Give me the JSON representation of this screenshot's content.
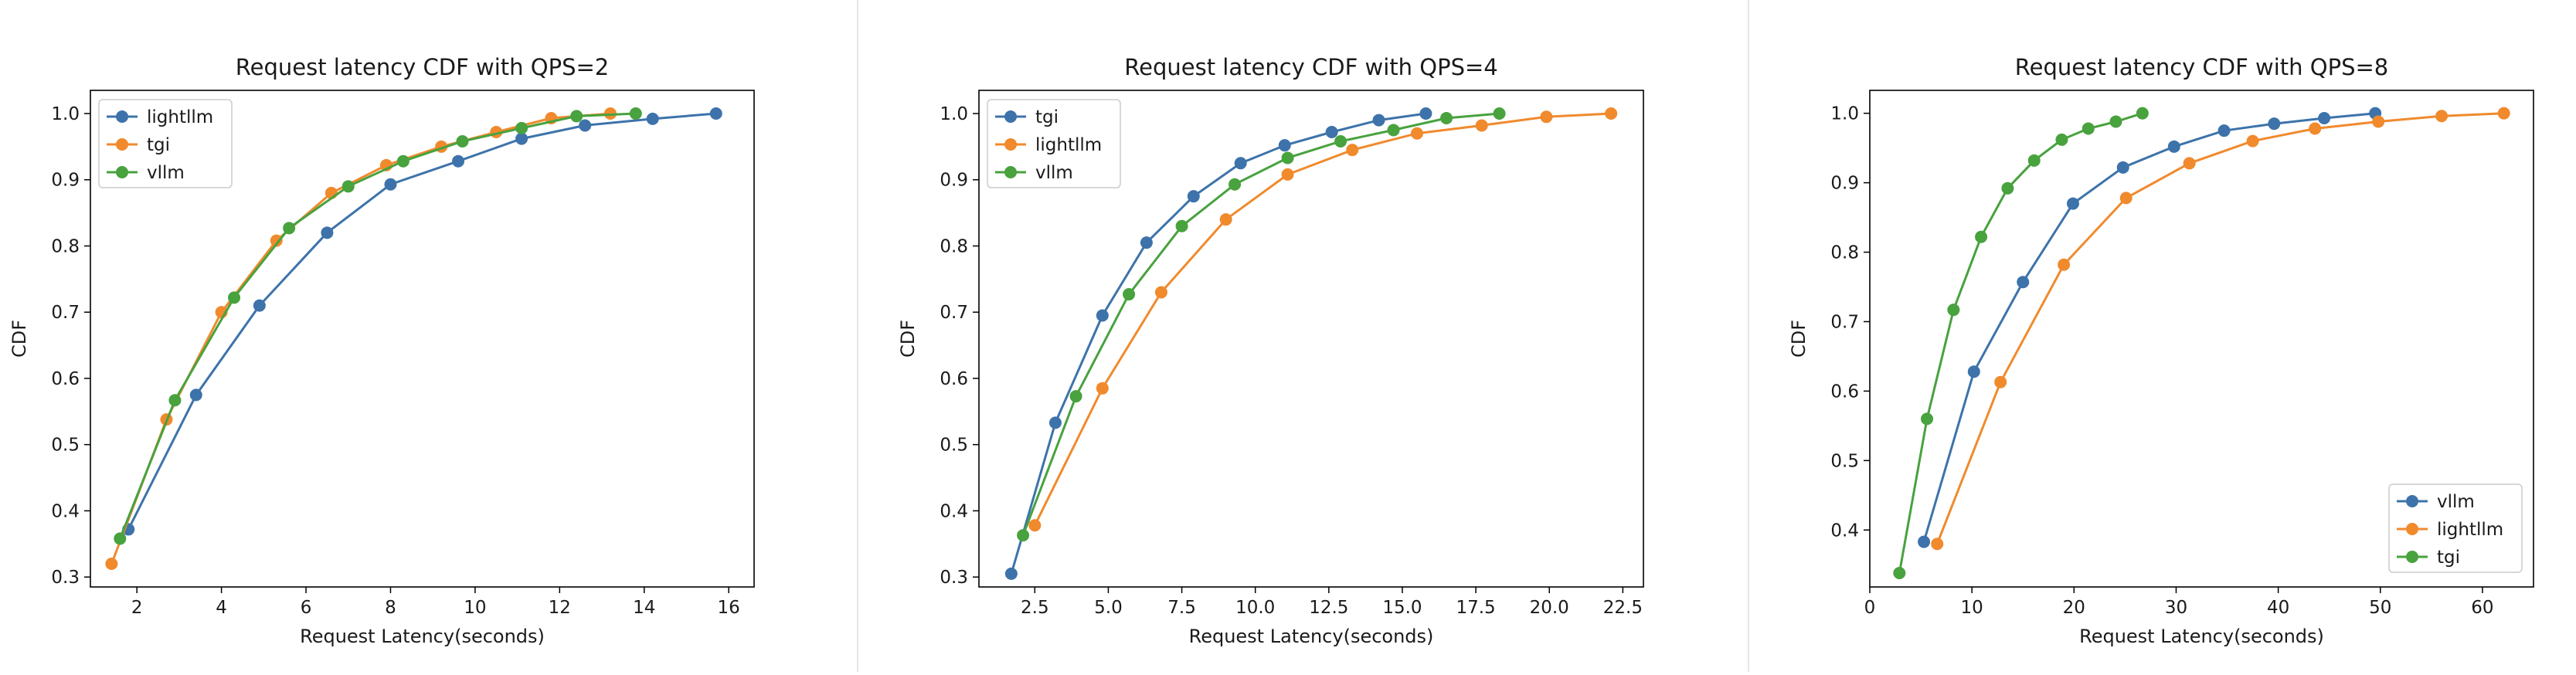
{
  "chart_data": [
    {
      "type": "line",
      "title": "Request latency CDF with QPS=2",
      "xlabel": "Request Latency(seconds)",
      "ylabel": "CDF",
      "xlim": [
        0.9,
        16.6
      ],
      "ylim": [
        0.285,
        1.035
      ],
      "xticks": [
        2,
        4,
        6,
        8,
        10,
        12,
        14,
        16
      ],
      "yticks": [
        0.3,
        0.4,
        0.5,
        0.6,
        0.7,
        0.8,
        0.9,
        1.0
      ],
      "grid": false,
      "legend": "top-left",
      "series": [
        {
          "name": "lightllm",
          "color": "#3d73aa",
          "x": [
            1.8,
            3.4,
            4.9,
            6.5,
            8.0,
            9.6,
            11.1,
            12.6,
            14.2,
            15.7
          ],
          "y": [
            0.372,
            0.575,
            0.71,
            0.82,
            0.893,
            0.928,
            0.962,
            0.982,
            0.992,
            1.0
          ]
        },
        {
          "name": "tgi",
          "color": "#f08a2d",
          "x": [
            1.4,
            2.7,
            4.0,
            5.3,
            6.6,
            7.9,
            9.2,
            10.5,
            11.8,
            13.2
          ],
          "y": [
            0.32,
            0.538,
            0.7,
            0.808,
            0.88,
            0.922,
            0.95,
            0.972,
            0.993,
            1.0
          ]
        },
        {
          "name": "vllm",
          "color": "#48a23e",
          "x": [
            1.6,
            2.9,
            4.3,
            5.6,
            7.0,
            8.3,
            9.7,
            11.1,
            12.4,
            13.8
          ],
          "y": [
            0.358,
            0.567,
            0.722,
            0.827,
            0.89,
            0.928,
            0.958,
            0.978,
            0.996,
            1.0
          ]
        }
      ]
    },
    {
      "type": "line",
      "title": "Request latency CDF with QPS=4",
      "xlabel": "Request Latency(seconds)",
      "ylabel": "CDF",
      "xlim": [
        0.6,
        23.2
      ],
      "ylim": [
        0.285,
        1.035
      ],
      "xticks": [
        2.5,
        5.0,
        7.5,
        10.0,
        12.5,
        15.0,
        17.5,
        20.0,
        22.5
      ],
      "yticks": [
        0.3,
        0.4,
        0.5,
        0.6,
        0.7,
        0.8,
        0.9,
        1.0
      ],
      "grid": false,
      "legend": "top-left",
      "series": [
        {
          "name": "tgi",
          "color": "#3d73aa",
          "x": [
            1.7,
            3.2,
            4.8,
            6.3,
            7.9,
            9.5,
            11.0,
            12.6,
            14.2,
            15.8
          ],
          "y": [
            0.305,
            0.533,
            0.695,
            0.805,
            0.875,
            0.925,
            0.952,
            0.972,
            0.99,
            1.0
          ]
        },
        {
          "name": "lightllm",
          "color": "#f08a2d",
          "x": [
            2.5,
            4.8,
            6.8,
            9.0,
            11.1,
            13.3,
            15.5,
            17.7,
            19.9,
            22.1
          ],
          "y": [
            0.378,
            0.585,
            0.73,
            0.84,
            0.908,
            0.945,
            0.97,
            0.982,
            0.995,
            1.0
          ]
        },
        {
          "name": "vllm",
          "color": "#48a23e",
          "x": [
            2.1,
            3.9,
            5.7,
            7.5,
            9.3,
            11.1,
            12.9,
            14.7,
            16.5,
            18.3
          ],
          "y": [
            0.363,
            0.573,
            0.727,
            0.83,
            0.893,
            0.933,
            0.958,
            0.975,
            0.993,
            1.0
          ]
        }
      ]
    },
    {
      "type": "line",
      "title": "Request latency CDF with QPS=8",
      "xlabel": "Request Latency(seconds)",
      "ylabel": "CDF",
      "xlim": [
        0,
        65
      ],
      "ylim": [
        0.318,
        1.033
      ],
      "xticks": [
        0,
        10,
        20,
        30,
        40,
        50,
        60
      ],
      "yticks": [
        0.4,
        0.5,
        0.6,
        0.7,
        0.8,
        0.9,
        1.0
      ],
      "grid": false,
      "legend": "bottom-right",
      "series": [
        {
          "name": "vllm",
          "color": "#3d73aa",
          "x": [
            5.3,
            10.2,
            15.0,
            19.9,
            24.8,
            29.8,
            34.7,
            39.6,
            44.5,
            49.5
          ],
          "y": [
            0.383,
            0.628,
            0.757,
            0.87,
            0.922,
            0.952,
            0.975,
            0.985,
            0.993,
            1.0
          ]
        },
        {
          "name": "lightllm",
          "color": "#f08a2d",
          "x": [
            6.6,
            12.8,
            19.0,
            25.1,
            31.3,
            37.5,
            43.6,
            49.8,
            56.0,
            62.1
          ],
          "y": [
            0.38,
            0.613,
            0.782,
            0.878,
            0.928,
            0.96,
            0.978,
            0.988,
            0.996,
            1.0
          ]
        },
        {
          "name": "tgi",
          "color": "#48a23e",
          "x": [
            2.9,
            5.6,
            8.2,
            10.9,
            13.5,
            16.1,
            18.8,
            21.4,
            24.1,
            26.7
          ],
          "y": [
            0.338,
            0.56,
            0.717,
            0.822,
            0.892,
            0.932,
            0.962,
            0.978,
            0.988,
            1.0
          ]
        }
      ]
    }
  ]
}
